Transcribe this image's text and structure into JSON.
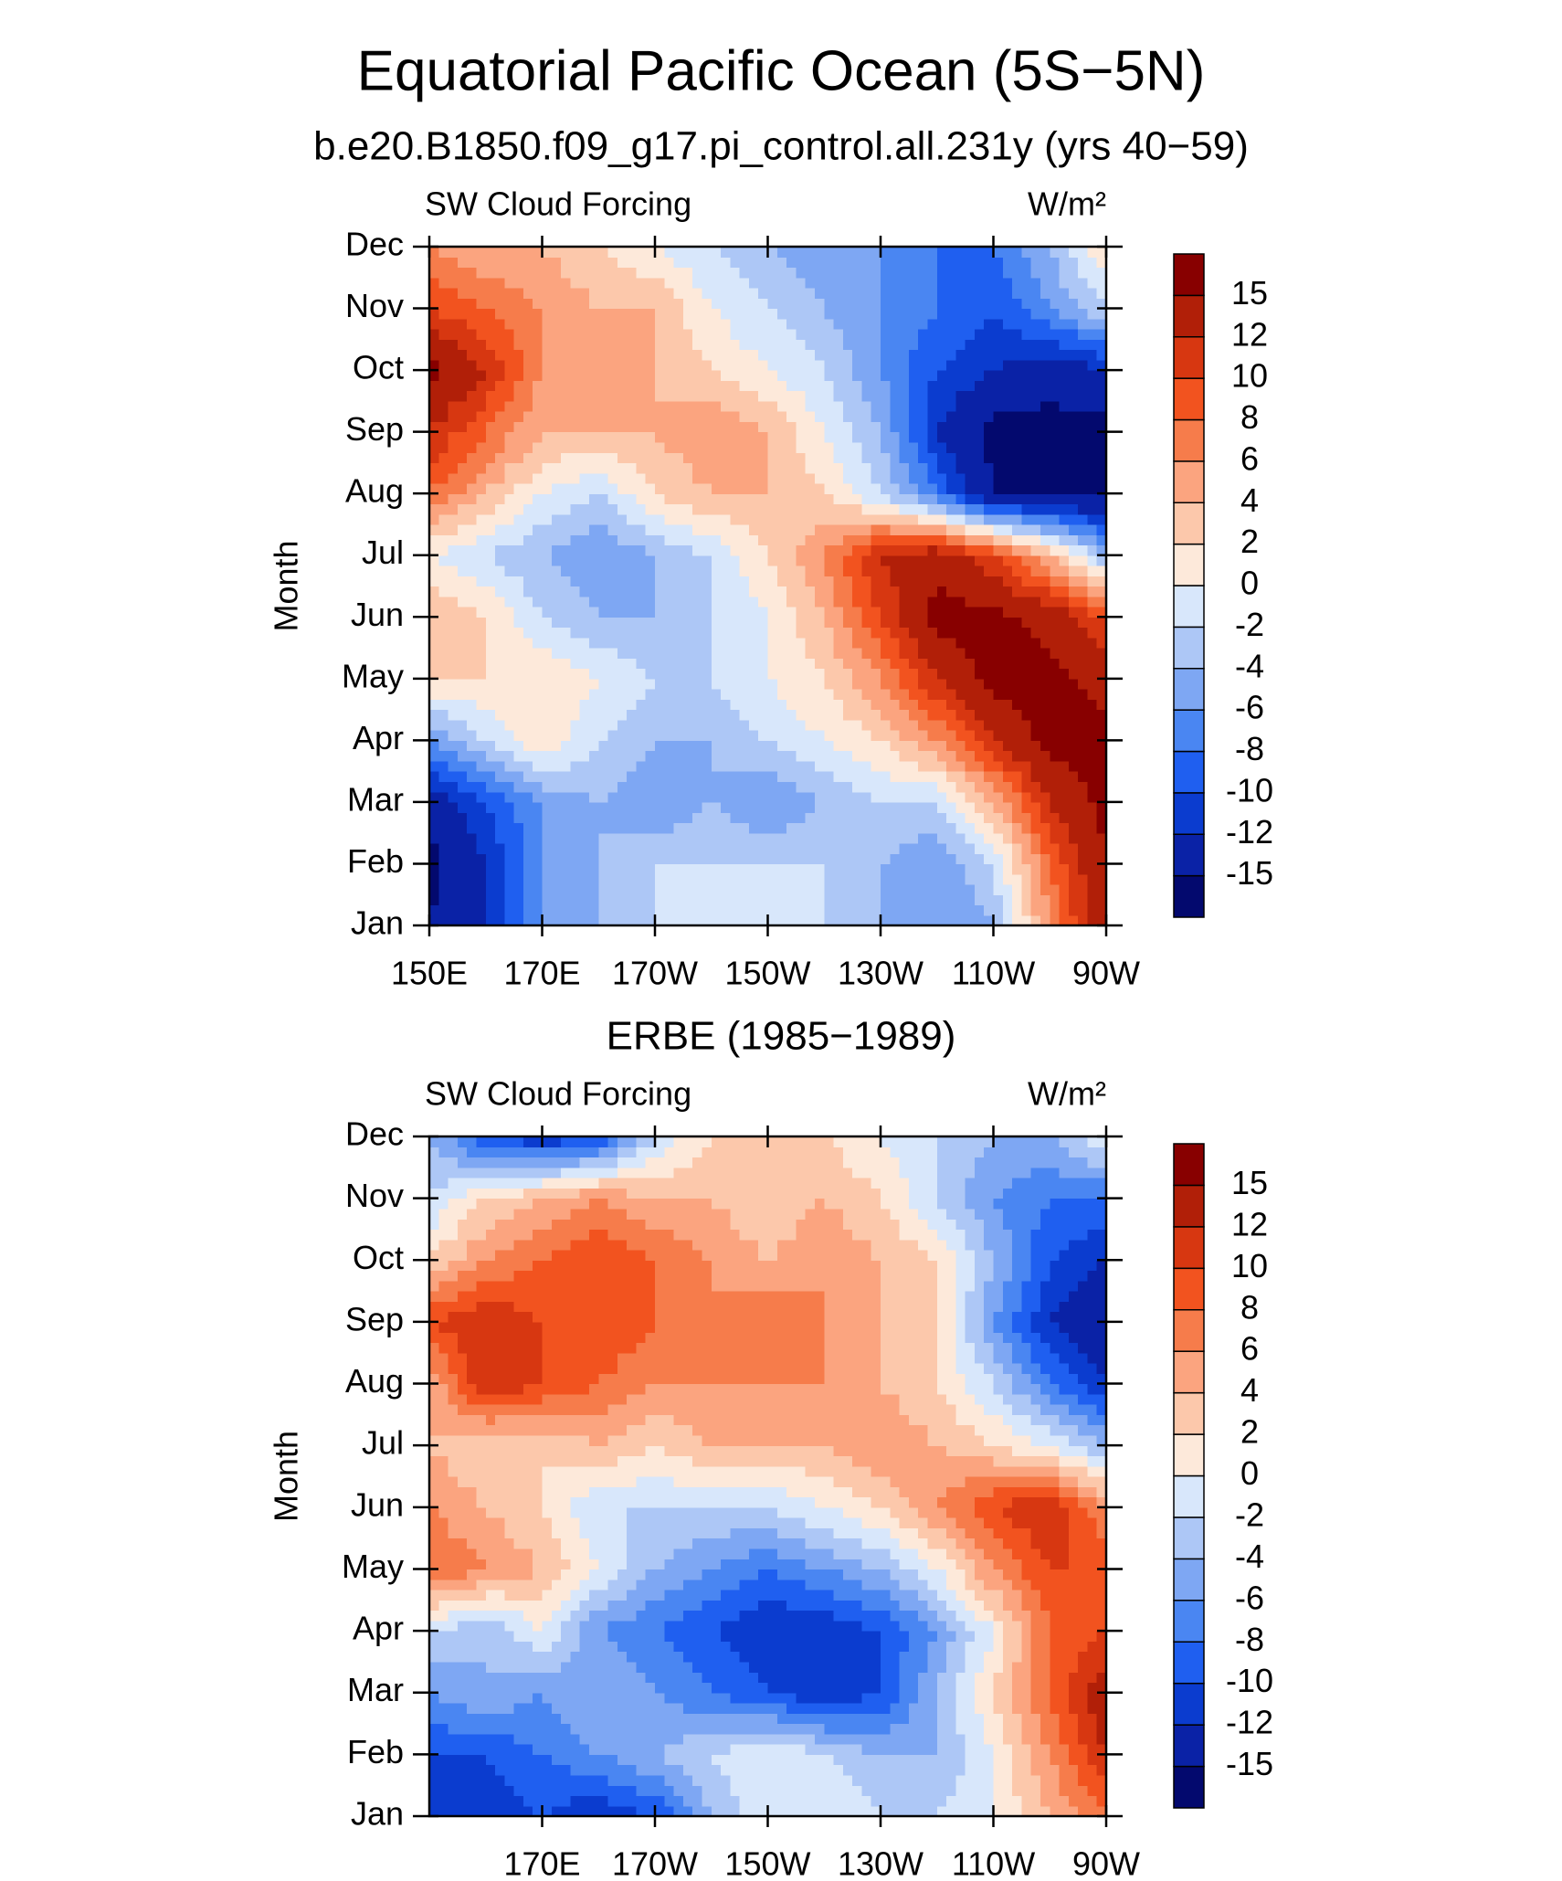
{
  "chart_data": [
    {
      "type": "contour",
      "title": "Equatorial Pacific Ocean (5S−5N)",
      "subtitle": "b.e20.B1850.f09_g17.pi_control.all.231y (yrs 40−59)",
      "left_label": "SW Cloud Forcing",
      "units": "W/m²",
      "ylabel": "Month",
      "categories": [
        "Jan",
        "Feb",
        "Mar",
        "Apr",
        "May",
        "Jun",
        "Jul",
        "Aug",
        "Sep",
        "Oct",
        "Nov",
        "Dec"
      ],
      "x": [
        150,
        160,
        170,
        180,
        190,
        200,
        210,
        220,
        230,
        240,
        250,
        260,
        270
      ],
      "xlim": [
        150,
        270
      ],
      "xticks": [
        {
          "value": 150,
          "label": "150E"
        },
        {
          "value": 170,
          "label": "170E"
        },
        {
          "value": 190,
          "label": "170W"
        },
        {
          "value": 210,
          "label": "150W"
        },
        {
          "value": 230,
          "label": "130W"
        },
        {
          "value": 250,
          "label": "110W"
        },
        {
          "value": 270,
          "label": "90W"
        }
      ],
      "values": [
        [
          -15,
          -12,
          -6,
          -4,
          -2,
          0,
          -2,
          -2,
          -4,
          -6,
          -4,
          6,
          15
        ],
        [
          -16,
          -12,
          -6,
          -4,
          -2,
          -2,
          -2,
          -2,
          -4,
          -6,
          -2,
          8,
          15
        ],
        [
          -14,
          -10,
          -6,
          -4,
          -6,
          -4,
          -6,
          -4,
          -2,
          -2,
          4,
          12,
          16
        ],
        [
          -6,
          -2,
          2,
          -2,
          -4,
          -4,
          -2,
          0,
          2,
          6,
          12,
          16,
          16
        ],
        [
          2,
          2,
          2,
          0,
          -2,
          -2,
          0,
          2,
          6,
          12,
          16,
          16,
          14
        ],
        [
          4,
          2,
          -2,
          -4,
          -4,
          -2,
          0,
          4,
          10,
          16,
          16,
          14,
          10
        ],
        [
          0,
          -2,
          -4,
          -6,
          -4,
          -2,
          2,
          6,
          12,
          14,
          10,
          4,
          -4
        ],
        [
          8,
          4,
          0,
          -2,
          2,
          4,
          4,
          2,
          -2,
          -8,
          -15,
          -16,
          -16
        ],
        [
          12,
          8,
          4,
          4,
          4,
          6,
          4,
          0,
          -4,
          -12,
          -16,
          -16,
          -16
        ],
        [
          16,
          12,
          6,
          6,
          4,
          2,
          0,
          -2,
          -6,
          -10,
          -12,
          -14,
          -12
        ],
        [
          10,
          8,
          6,
          4,
          4,
          0,
          -2,
          -4,
          -6,
          -8,
          -10,
          -6,
          -2
        ],
        [
          6,
          4,
          4,
          2,
          0,
          -2,
          -4,
          -6,
          -6,
          -8,
          -8,
          -4,
          2
        ]
      ],
      "levels": [
        -15,
        -12,
        -10,
        -8,
        -6,
        -4,
        -2,
        0,
        2,
        4,
        6,
        8,
        10,
        12,
        15
      ],
      "colors": [
        "#03096e",
        "#0a22a6",
        "#0b3ccf",
        "#1f5ff0",
        "#4a86f2",
        "#7ea7f3",
        "#adc7f6",
        "#d8e7fb",
        "#fde9da",
        "#fcc8ab",
        "#fba47f",
        "#f67c4b",
        "#f2531f",
        "#d73711",
        "#b11f08",
        "#880000"
      ]
    },
    {
      "type": "contour",
      "title": "ERBE (1985−1989)",
      "left_label": "SW Cloud Forcing",
      "units": "W/m²",
      "ylabel": "Month",
      "categories": [
        "Jan",
        "Feb",
        "Mar",
        "Apr",
        "May",
        "Jun",
        "Jul",
        "Aug",
        "Sep",
        "Oct",
        "Nov",
        "Dec"
      ],
      "x": [
        150,
        160,
        170,
        180,
        190,
        200,
        210,
        220,
        230,
        240,
        250,
        260,
        270
      ],
      "xlim": [
        150,
        270
      ],
      "xticks": [
        {
          "value": 170,
          "label": "170E"
        },
        {
          "value": 190,
          "label": "170W"
        },
        {
          "value": 210,
          "label": "150W"
        },
        {
          "value": 230,
          "label": "130W"
        },
        {
          "value": 250,
          "label": "110W"
        },
        {
          "value": 270,
          "label": "90W"
        }
      ],
      "values": [
        [
          -12,
          -12,
          -10,
          -12,
          -10,
          -4,
          0,
          0,
          -2,
          -2,
          0,
          4,
          8
        ],
        [
          -10,
          -10,
          -8,
          -6,
          -4,
          -2,
          0,
          -2,
          -4,
          -4,
          0,
          6,
          12
        ],
        [
          -6,
          -4,
          -6,
          -4,
          -6,
          -8,
          -10,
          -12,
          -10,
          -4,
          2,
          8,
          14
        ],
        [
          -2,
          -4,
          0,
          -6,
          -8,
          -10,
          -12,
          -12,
          -10,
          -6,
          0,
          8,
          10
        ],
        [
          8,
          6,
          4,
          0,
          -4,
          -6,
          -8,
          -6,
          -4,
          0,
          6,
          10,
          10
        ],
        [
          6,
          4,
          2,
          -2,
          -2,
          -2,
          -2,
          0,
          2,
          6,
          10,
          12,
          6
        ],
        [
          4,
          2,
          2,
          4,
          2,
          4,
          4,
          4,
          6,
          4,
          2,
          0,
          -4
        ],
        [
          4,
          12,
          10,
          8,
          6,
          6,
          6,
          6,
          4,
          2,
          -2,
          -8,
          -12
        ],
        [
          10,
          12,
          10,
          10,
          8,
          6,
          8,
          6,
          4,
          2,
          -6,
          -12,
          -15
        ],
        [
          2,
          6,
          8,
          10,
          8,
          6,
          4,
          6,
          4,
          2,
          -4,
          -10,
          -12
        ],
        [
          -2,
          2,
          4,
          6,
          4,
          4,
          2,
          4,
          2,
          -2,
          -6,
          -8,
          -8
        ],
        [
          -4,
          -10,
          -12,
          -10,
          -2,
          2,
          2,
          2,
          0,
          -2,
          -4,
          -4,
          0
        ]
      ],
      "levels": [
        -15,
        -12,
        -10,
        -8,
        -6,
        -4,
        -2,
        0,
        2,
        4,
        6,
        8,
        10,
        12,
        15
      ],
      "colors": [
        "#03096e",
        "#0a22a6",
        "#0b3ccf",
        "#1f5ff0",
        "#4a86f2",
        "#7ea7f3",
        "#adc7f6",
        "#d8e7fb",
        "#fde9da",
        "#fcc8ab",
        "#fba47f",
        "#f67c4b",
        "#f2531f",
        "#d73711",
        "#b11f08",
        "#880000"
      ]
    }
  ]
}
